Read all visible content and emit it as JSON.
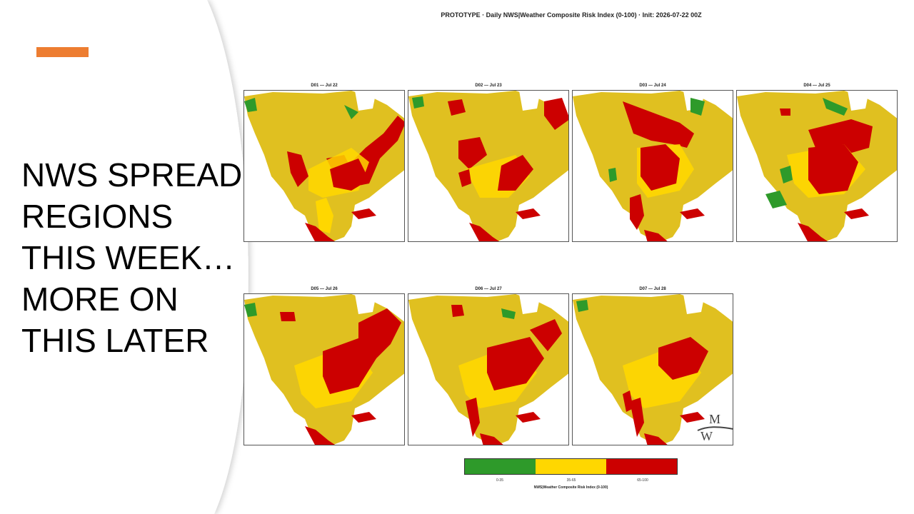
{
  "slide": {
    "title_lines": [
      "NWS SPREAD",
      "REGIONS",
      "THIS WEEK…",
      "MORE ON",
      "THIS LATER"
    ],
    "accent_color": "#ed7d31"
  },
  "figure": {
    "title": "PROTOTYPE  ·  Daily NWS|Weather Composite Risk Index (0-100)  ·  Init: 2026-07-22 00Z",
    "panels": [
      {
        "label": "D01 — Jul 22"
      },
      {
        "label": "D02 — Jul 23"
      },
      {
        "label": "D03 — Jul 24"
      },
      {
        "label": "D04 — Jul 25"
      },
      {
        "label": "D05 — Jul 26"
      },
      {
        "label": "D06 — Jul 27"
      },
      {
        "label": "D07 — Jul 28"
      }
    ],
    "legend": {
      "caption": "NWS|Weather Composite Risk Index (0-100)",
      "items": [
        {
          "label": "0-35",
          "color": "#2e9a2a"
        },
        {
          "label": "35-65",
          "color": "#ffd700"
        },
        {
          "label": "65-100",
          "color": "#cc0000"
        }
      ]
    },
    "logo": {
      "text": "Michigan Weather"
    }
  }
}
